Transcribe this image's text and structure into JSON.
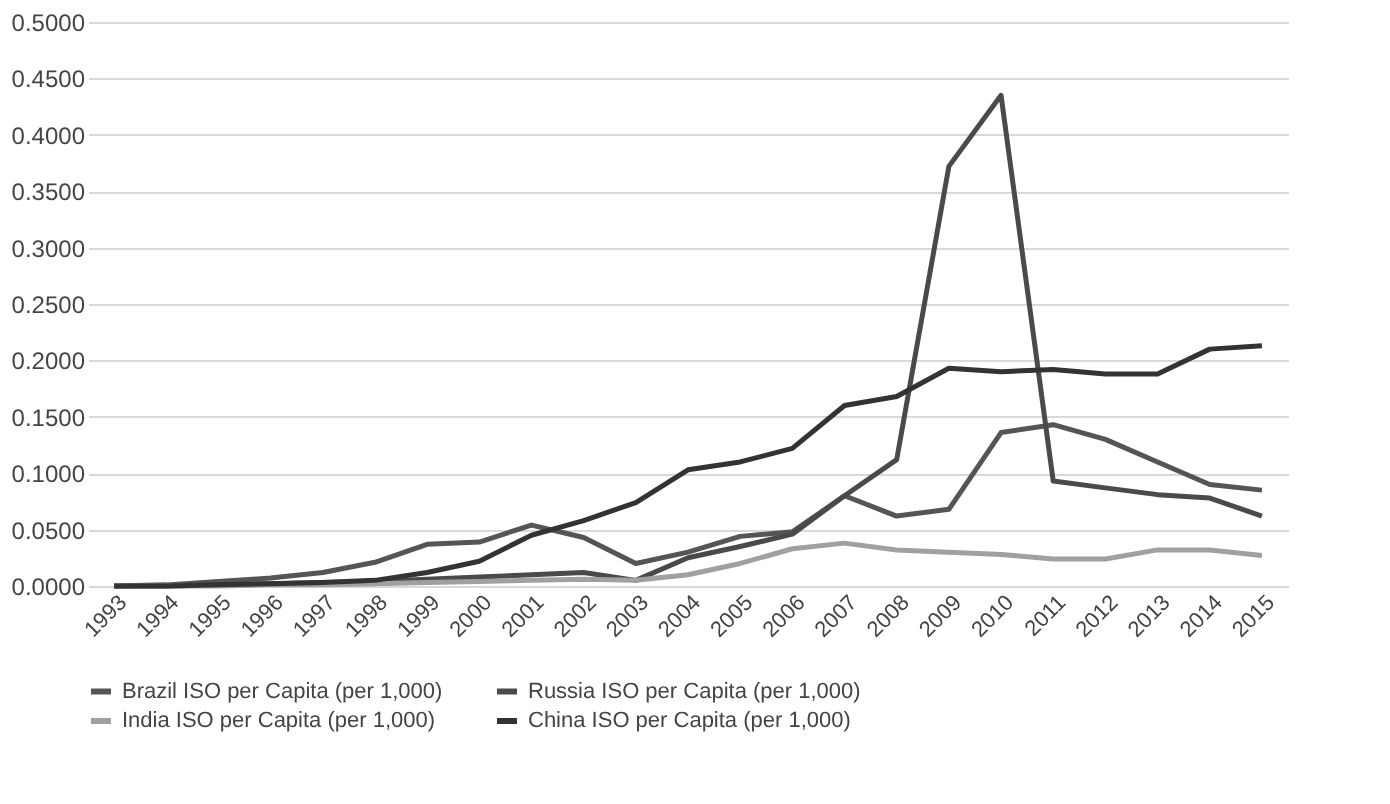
{
  "chart_data": {
    "type": "line",
    "categories": [
      "1993",
      "1994",
      "1995",
      "1996",
      "1997",
      "1998",
      "1999",
      "2000",
      "2001",
      "2002",
      "2003",
      "2004",
      "2005",
      "2006",
      "2007",
      "2008",
      "2009",
      "2010",
      "2011",
      "2012",
      "2013",
      "2014",
      "2015"
    ],
    "series": [
      {
        "name": "Brazil ISO per Capita (per 1,000)",
        "color": "#555555",
        "values": [
          0.0,
          0.001,
          0.004,
          0.007,
          0.012,
          0.021,
          0.037,
          0.039,
          0.054,
          0.043,
          0.02,
          0.03,
          0.044,
          0.048,
          0.08,
          0.062,
          0.068,
          0.136,
          0.143,
          0.13,
          0.11,
          0.09,
          0.085
        ]
      },
      {
        "name": "Russia ISO per Capita (per 1,000)",
        "color": "#4a4a4a",
        "values": [
          0.0,
          0.0,
          0.001,
          0.002,
          0.003,
          0.004,
          0.006,
          0.008,
          0.01,
          0.012,
          0.005,
          0.025,
          0.035,
          0.046,
          0.08,
          0.112,
          0.372,
          0.435,
          0.093,
          0.087,
          0.081,
          0.078,
          0.062
        ]
      },
      {
        "name": "India ISO per Capita (per 1,000)",
        "color": "#a0a0a0",
        "values": [
          0.0,
          0.0,
          0.0,
          0.001,
          0.001,
          0.002,
          0.003,
          0.004,
          0.005,
          0.006,
          0.005,
          0.01,
          0.02,
          0.033,
          0.038,
          0.032,
          0.03,
          0.028,
          0.024,
          0.024,
          0.032,
          0.032,
          0.027
        ]
      },
      {
        "name": "China ISO per Capita (per 1,000)",
        "color": "#333333",
        "values": [
          0.0,
          0.0,
          0.001,
          0.002,
          0.003,
          0.005,
          0.012,
          0.022,
          0.045,
          0.058,
          0.074,
          0.103,
          0.11,
          0.122,
          0.16,
          0.168,
          0.193,
          0.19,
          0.192,
          0.188,
          0.188,
          0.21,
          0.213
        ]
      }
    ],
    "ylim": [
      0,
      0.5
    ],
    "yticks": [
      {
        "value": 0,
        "label": "0.0000"
      },
      {
        "value": 0.05,
        "label": "0.0500"
      },
      {
        "value": 0.1,
        "label": "0.1000"
      },
      {
        "value": 0.15,
        "label": "0.1500"
      },
      {
        "value": 0.2,
        "label": "0.2000"
      },
      {
        "value": 0.25,
        "label": "0.2500"
      },
      {
        "value": 0.3,
        "label": "0.3000"
      },
      {
        "value": 0.35,
        "label": "0.3500"
      },
      {
        "value": 0.4,
        "label": "0.4000"
      },
      {
        "value": 0.45,
        "label": "0.4500"
      },
      {
        "value": 0.5,
        "label": "0.5000"
      }
    ],
    "grid": "y",
    "legend": "bottom",
    "marker": "none",
    "line_style": "solid"
  }
}
